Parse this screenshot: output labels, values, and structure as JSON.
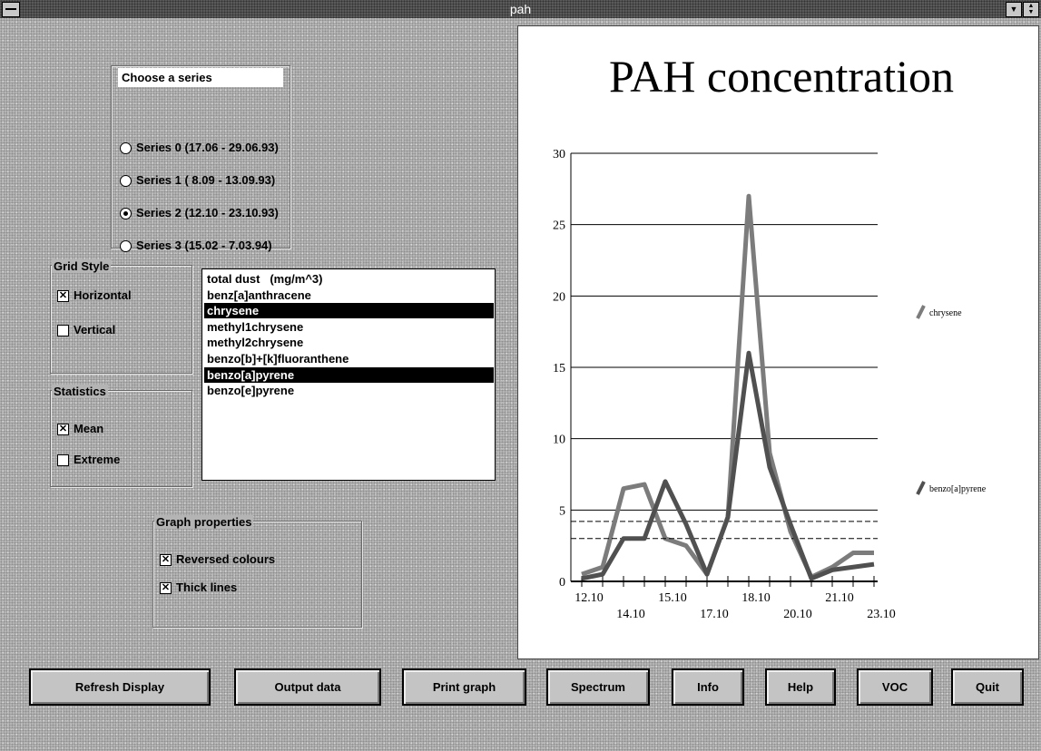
{
  "window": {
    "title": "pah"
  },
  "series_group": {
    "title": "Choose a series",
    "options": [
      {
        "label": "Series 0 (17.06 - 29.06.93)",
        "selected": false
      },
      {
        "label": "Series 1 ( 8.09 - 13.09.93)",
        "selected": false
      },
      {
        "label": "Series 2 (12.10 - 23.10.93)",
        "selected": true
      },
      {
        "label": "Series 3 (15.02 - 7.03.94)",
        "selected": false
      }
    ]
  },
  "grid_style": {
    "title": "Grid Style",
    "options": [
      {
        "label": "Horizontal",
        "checked": true
      },
      {
        "label": "Vertical",
        "checked": false
      }
    ]
  },
  "statistics": {
    "title": "Statistics",
    "options": [
      {
        "label": "Mean",
        "checked": true
      },
      {
        "label": "Extreme",
        "checked": false
      }
    ]
  },
  "substance_list": {
    "items": [
      {
        "text": "total dust   (mg/m^3)",
        "selected": false
      },
      {
        "text": "benz[a]anthracene",
        "selected": false
      },
      {
        "text": "chrysene",
        "selected": true
      },
      {
        "text": "methyl1chrysene",
        "selected": false
      },
      {
        "text": "methyl2chrysene",
        "selected": false
      },
      {
        "text": "benzo[b]+[k]fluoranthene",
        "selected": false
      },
      {
        "text": "benzo[a]pyrene",
        "selected": true
      },
      {
        "text": "benzo[e]pyrene",
        "selected": false
      }
    ]
  },
  "graph_properties": {
    "title": "Graph properties",
    "options": [
      {
        "label": "Reversed colours",
        "checked": true
      },
      {
        "label": "Thick lines",
        "checked": true
      }
    ]
  },
  "buttons": [
    "Refresh Display",
    "Output data",
    "Print graph",
    "Spectrum",
    "Info",
    "Help",
    "VOC",
    "Quit"
  ],
  "chart_data": {
    "type": "line",
    "title": "PAH concentration",
    "categories": [
      "12.10",
      null,
      "14.10",
      null,
      "15.10",
      null,
      "17.10",
      null,
      "18.10",
      null,
      "20.10",
      null,
      "21.10",
      null,
      "23.10"
    ],
    "series": [
      {
        "name": "chrysene",
        "color": "#7c7c7c",
        "mean": 4.2,
        "values": [
          0.5,
          1,
          6.5,
          6.8,
          3,
          2.5,
          0.5,
          4.5,
          27,
          9,
          3.5,
          0.3,
          1,
          2,
          2
        ]
      },
      {
        "name": "benzo[a]pyrene",
        "color": "#505050",
        "mean": 3.0,
        "values": [
          0.2,
          0.5,
          3,
          3,
          7,
          4,
          0.5,
          4.5,
          16,
          8,
          4,
          0.2,
          0.8,
          1,
          1.2
        ]
      }
    ],
    "ylim": [
      0,
      30
    ],
    "yticks": [
      0,
      5,
      10,
      15,
      20,
      25,
      30
    ]
  }
}
